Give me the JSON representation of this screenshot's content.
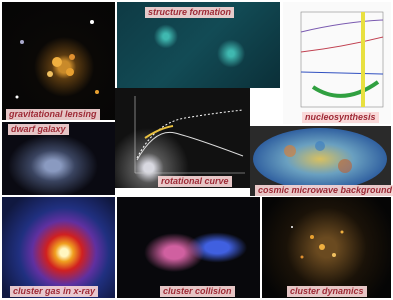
{
  "panels": [
    {
      "label": "gravitational lensing"
    },
    {
      "label": "structure formation"
    },
    {
      "label": "nucleosynthesis"
    },
    {
      "label": "dwarf galaxy"
    },
    {
      "label": "rotational curve"
    },
    {
      "label": "cosmic microwave background"
    },
    {
      "label": "cluster gas in x-ray"
    },
    {
      "label": "cluster collision"
    },
    {
      "label": "cluster dynamics"
    }
  ]
}
